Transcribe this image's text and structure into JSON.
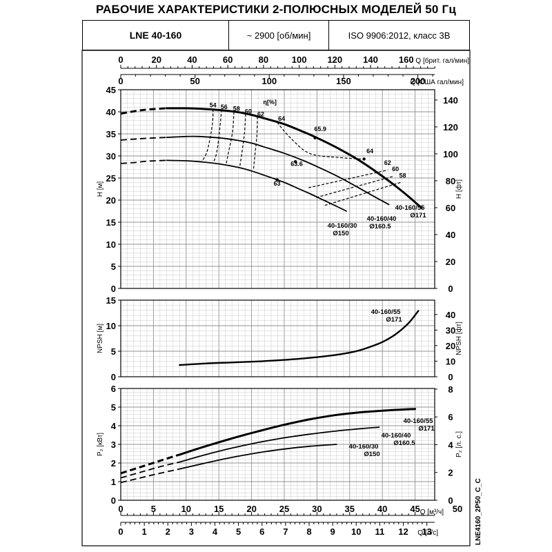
{
  "title": "РАБОЧИЕ ХАРАКТЕРИСТИКИ 2-ПОЛЮСНЫХ МОДЕЛЕЙ 50 Гц",
  "header": {
    "model": "LNE 40-160",
    "speed": "~ 2900 [об/мин]",
    "standard": "ISO 9906:2012, класс 3В"
  },
  "side_code": "LNE4160_2P50_C_C",
  "colors": {
    "line": "#000000",
    "grid_major": "#909090",
    "grid_minor": "#c8c8c8",
    "background": "#ffffff"
  },
  "chart_data": {
    "type": "line",
    "top_axes": {
      "uk_gpm": {
        "label": "Q [брит. гал/мин]",
        "ticks": [
          0,
          20,
          40,
          60,
          80,
          100,
          120,
          140,
          160
        ],
        "tick_labels": [
          "0",
          "20",
          "40",
          "60",
          "80",
          "100",
          "120",
          "140",
          "160"
        ]
      },
      "us_gpm": {
        "label": "Q [США гал/мин]",
        "ticks": [
          0,
          50,
          100,
          150,
          200
        ],
        "tick_labels": [
          "0",
          "50",
          "100",
          "150",
          "200"
        ]
      }
    },
    "bottom_axes": {
      "m3h": {
        "label": "Q [м³/ч]",
        "ticks": [
          0,
          5,
          10,
          15,
          20,
          25,
          30,
          35,
          40,
          45,
          50
        ],
        "tick_labels": [
          "0",
          "5",
          "10",
          "15",
          "20",
          "25",
          "30",
          "35",
          "40",
          "45",
          "50"
        ]
      },
      "ls": {
        "label": "Q [л/с]",
        "ticks": [
          0,
          1,
          2,
          3,
          4,
          5,
          6,
          7,
          8,
          9,
          10,
          11,
          12,
          13
        ],
        "tick_labels": [
          "0",
          "1",
          "2",
          "3",
          "4",
          "5",
          "6",
          "7",
          "8",
          "9",
          "10",
          "11",
          "12",
          "13"
        ]
      }
    },
    "xlim": [
      0,
      48
    ],
    "panels": [
      {
        "id": "head",
        "ylabel": "H [м]",
        "ylim": [
          0,
          45
        ],
        "yticks": [
          0,
          5,
          10,
          15,
          20,
          25,
          30,
          35,
          40,
          45
        ],
        "ylabel_right": "H [фт]",
        "yticks_right": [
          0,
          20,
          40,
          60,
          80,
          100,
          120,
          140
        ],
        "efficiency_label": "η[%]",
        "series": [
          {
            "name": "40-160/55 Ø171",
            "label_lines": [
              "40-160/55",
              "Ø171"
            ],
            "width": 3,
            "dashed": [
              [
                0,
                39.6
              ],
              [
                2,
                40.1
              ],
              [
                4,
                40.5
              ],
              [
                7,
                40.8
              ]
            ],
            "x": [
              7,
              10,
              12,
              15,
              18,
              20,
              22,
              25,
              28,
              30,
              33,
              36,
              38,
              40,
              42,
              44,
              46
            ],
            "y": [
              40.8,
              40.8,
              40.7,
              40.4,
              39.9,
              39.3,
              38.5,
              37.2,
              35.4,
              34.1,
              31.9,
              29.4,
              27.5,
              25.4,
              23.2,
              20.8,
              18.2
            ]
          },
          {
            "name": "40-160/40 Ø160.5",
            "label_lines": [
              "40-160/40",
              "Ø160.5"
            ],
            "width": 1.8,
            "dashed": [
              [
                0,
                33.6
              ],
              [
                2,
                33.8
              ],
              [
                4,
                34.0
              ],
              [
                7,
                34.2
              ]
            ],
            "x": [
              7,
              10,
              12,
              15,
              18,
              20,
              22,
              25,
              28,
              30,
              33,
              36,
              39,
              41
            ],
            "y": [
              34.2,
              34.4,
              34.4,
              34.1,
              33.5,
              32.9,
              32.0,
              30.6,
              28.9,
              27.6,
              25.5,
              23.1,
              20.6,
              19.0
            ]
          },
          {
            "name": "40-160/30 Ø150",
            "label_lines": [
              "40-160/30",
              "Ø150"
            ],
            "width": 1.8,
            "dashed": [
              [
                0,
                28.3
              ],
              [
                2,
                28.5
              ],
              [
                4,
                28.8
              ],
              [
                7,
                29.0
              ]
            ],
            "x": [
              7,
              10,
              12,
              15,
              18,
              20,
              22,
              25,
              27,
              29,
              31,
              33,
              34.5
            ],
            "y": [
              29.0,
              28.9,
              28.7,
              28.2,
              27.4,
              26.6,
              25.6,
              24.0,
              22.7,
              21.4,
              20.0,
              18.6,
              17.5
            ]
          }
        ],
        "efficiency_values": [
          {
            "label": "54",
            "x": 14.1,
            "y": 41.0,
            "curve": [
              [
                14.1,
                40.6
              ],
              [
                14.0,
                37.0
              ],
              [
                13.2,
                31.0
              ],
              [
                12.3,
                28.6
              ]
            ]
          },
          {
            "label": "56",
            "x": 15.8,
            "y": 40.6,
            "curve": [
              [
                15.4,
                40.5
              ],
              [
                15.2,
                37.0
              ],
              [
                14.7,
                31.0
              ],
              [
                14.1,
                28.3
              ]
            ]
          },
          {
            "label": "58",
            "x": 17.7,
            "y": 40.2,
            "curve": [
              [
                17.3,
                40.0
              ],
              [
                17.1,
                35.5
              ],
              [
                16.5,
                31.0
              ],
              [
                16.1,
                28.0
              ]
            ]
          },
          {
            "label": "60",
            "x": 19.5,
            "y": 39.6,
            "curve": [
              [
                19.1,
                39.5
              ],
              [
                18.9,
                35.0
              ],
              [
                18.5,
                30.5
              ],
              [
                18.2,
                27.6
              ]
            ]
          },
          {
            "label": "62",
            "x": 21.4,
            "y": 39.0,
            "curve": [
              [
                20.9,
                38.9
              ],
              [
                20.8,
                34.5
              ],
              [
                20.5,
                30.0
              ],
              [
                20.3,
                26.9
              ]
            ]
          },
          {
            "label": "64",
            "x": 24.6,
            "y": 38.0,
            "curve": [
              [
                23.9,
                37.6
              ],
              [
                26.0,
                34.0
              ],
              [
                29.0,
                30.5
              ],
              [
                33.8,
                29.6
              ],
              [
                37.0,
                29.3
              ]
            ]
          },
          {
            "label": "65.9",
            "x": 30.5,
            "y": 35.6,
            "point": [
              29.7,
              34.1
            ]
          },
          {
            "label": "63.6",
            "x": 26.9,
            "y": 27.7,
            "point": [
              26.7,
              28.7
            ]
          },
          {
            "label": "63",
            "x": 23.9,
            "y": 23.3,
            "point": [
              23.9,
              24.6
            ]
          },
          {
            "label": "64",
            "x": 38.1,
            "y": 30.6,
            "point": [
              37.2,
              29.3
            ]
          },
          {
            "label": "62",
            "x": 40.8,
            "y": 28.0,
            "curve": [
              [
                28.7,
                22.8
              ],
              [
                40.8,
                26.8
              ]
            ]
          },
          {
            "label": "60",
            "x": 42.0,
            "y": 26.6,
            "curve": [
              [
                29.9,
                20.6
              ],
              [
                41.7,
                25.4
              ]
            ]
          },
          {
            "label": "58",
            "x": 43.1,
            "y": 25.1,
            "curve": [
              [
                31.2,
                18.8
              ],
              [
                42.8,
                24.0
              ]
            ]
          }
        ]
      },
      {
        "id": "npsh",
        "ylabel": "NPSH [м]",
        "ylim": [
          0,
          15
        ],
        "yticks": [
          0,
          5,
          10,
          15
        ],
        "ylabel_right": "NPSH [фт]",
        "yticks_right": [
          0,
          10,
          20,
          30,
          40
        ],
        "series": [
          {
            "name": "40-160/55 Ø171",
            "label_lines": [
              "40-160/55",
              "Ø171"
            ],
            "width": 2.4,
            "x": [
              9,
              13,
              17,
              21,
              25,
              29,
              33,
              36,
              38,
              40,
              42,
              44,
              45.5
            ],
            "y": [
              2.3,
              2.6,
              2.8,
              3.0,
              3.3,
              3.7,
              4.3,
              5.0,
              5.8,
              6.8,
              8.3,
              10.5,
              12.9
            ]
          }
        ]
      },
      {
        "id": "power",
        "ylabel": "P₂ [кВт]",
        "ylim": [
          0,
          6
        ],
        "yticks": [
          0,
          1,
          2,
          3,
          4,
          5,
          6
        ],
        "ylabel_right": "P₂ [л. с.]",
        "yticks_right": [
          0,
          2,
          4,
          6,
          8
        ],
        "series": [
          {
            "name": "40-160/55 Ø171",
            "label_lines": [
              "40-160/55",
              "Ø171"
            ],
            "width": 3,
            "dashed": [
              [
                0,
                1.45
              ],
              [
                3,
                1.78
              ],
              [
                6,
                2.12
              ],
              [
                9,
                2.45
              ]
            ],
            "x": [
              9,
              13,
              17,
              21,
              25,
              29,
              33,
              37,
              41,
              45
            ],
            "y": [
              2.45,
              2.9,
              3.32,
              3.7,
              4.05,
              4.35,
              4.58,
              4.73,
              4.83,
              4.9
            ]
          },
          {
            "name": "40-160/40 Ø160.5",
            "label_lines": [
              "40-160/40",
              "Ø160.5"
            ],
            "width": 1.8,
            "dashed": [
              [
                0,
                1.2
              ],
              [
                3,
                1.5
              ],
              [
                6,
                1.8
              ],
              [
                9,
                2.05
              ]
            ],
            "x": [
              9,
              13,
              17,
              21,
              25,
              29,
              33,
              37,
              39.5
            ],
            "y": [
              2.05,
              2.45,
              2.8,
              3.1,
              3.35,
              3.55,
              3.72,
              3.85,
              3.92
            ]
          },
          {
            "name": "40-160/30 Ø150",
            "label_lines": [
              "40-160/30",
              "Ø150"
            ],
            "width": 1.8,
            "dashed": [
              [
                0,
                0.95
              ],
              [
                3,
                1.2
              ],
              [
                6,
                1.45
              ],
              [
                9,
                1.68
              ]
            ],
            "x": [
              9,
              13,
              17,
              21,
              25,
              29,
              33
            ],
            "y": [
              1.68,
              2.0,
              2.3,
              2.55,
              2.75,
              2.9,
              3.0
            ]
          }
        ]
      }
    ]
  }
}
